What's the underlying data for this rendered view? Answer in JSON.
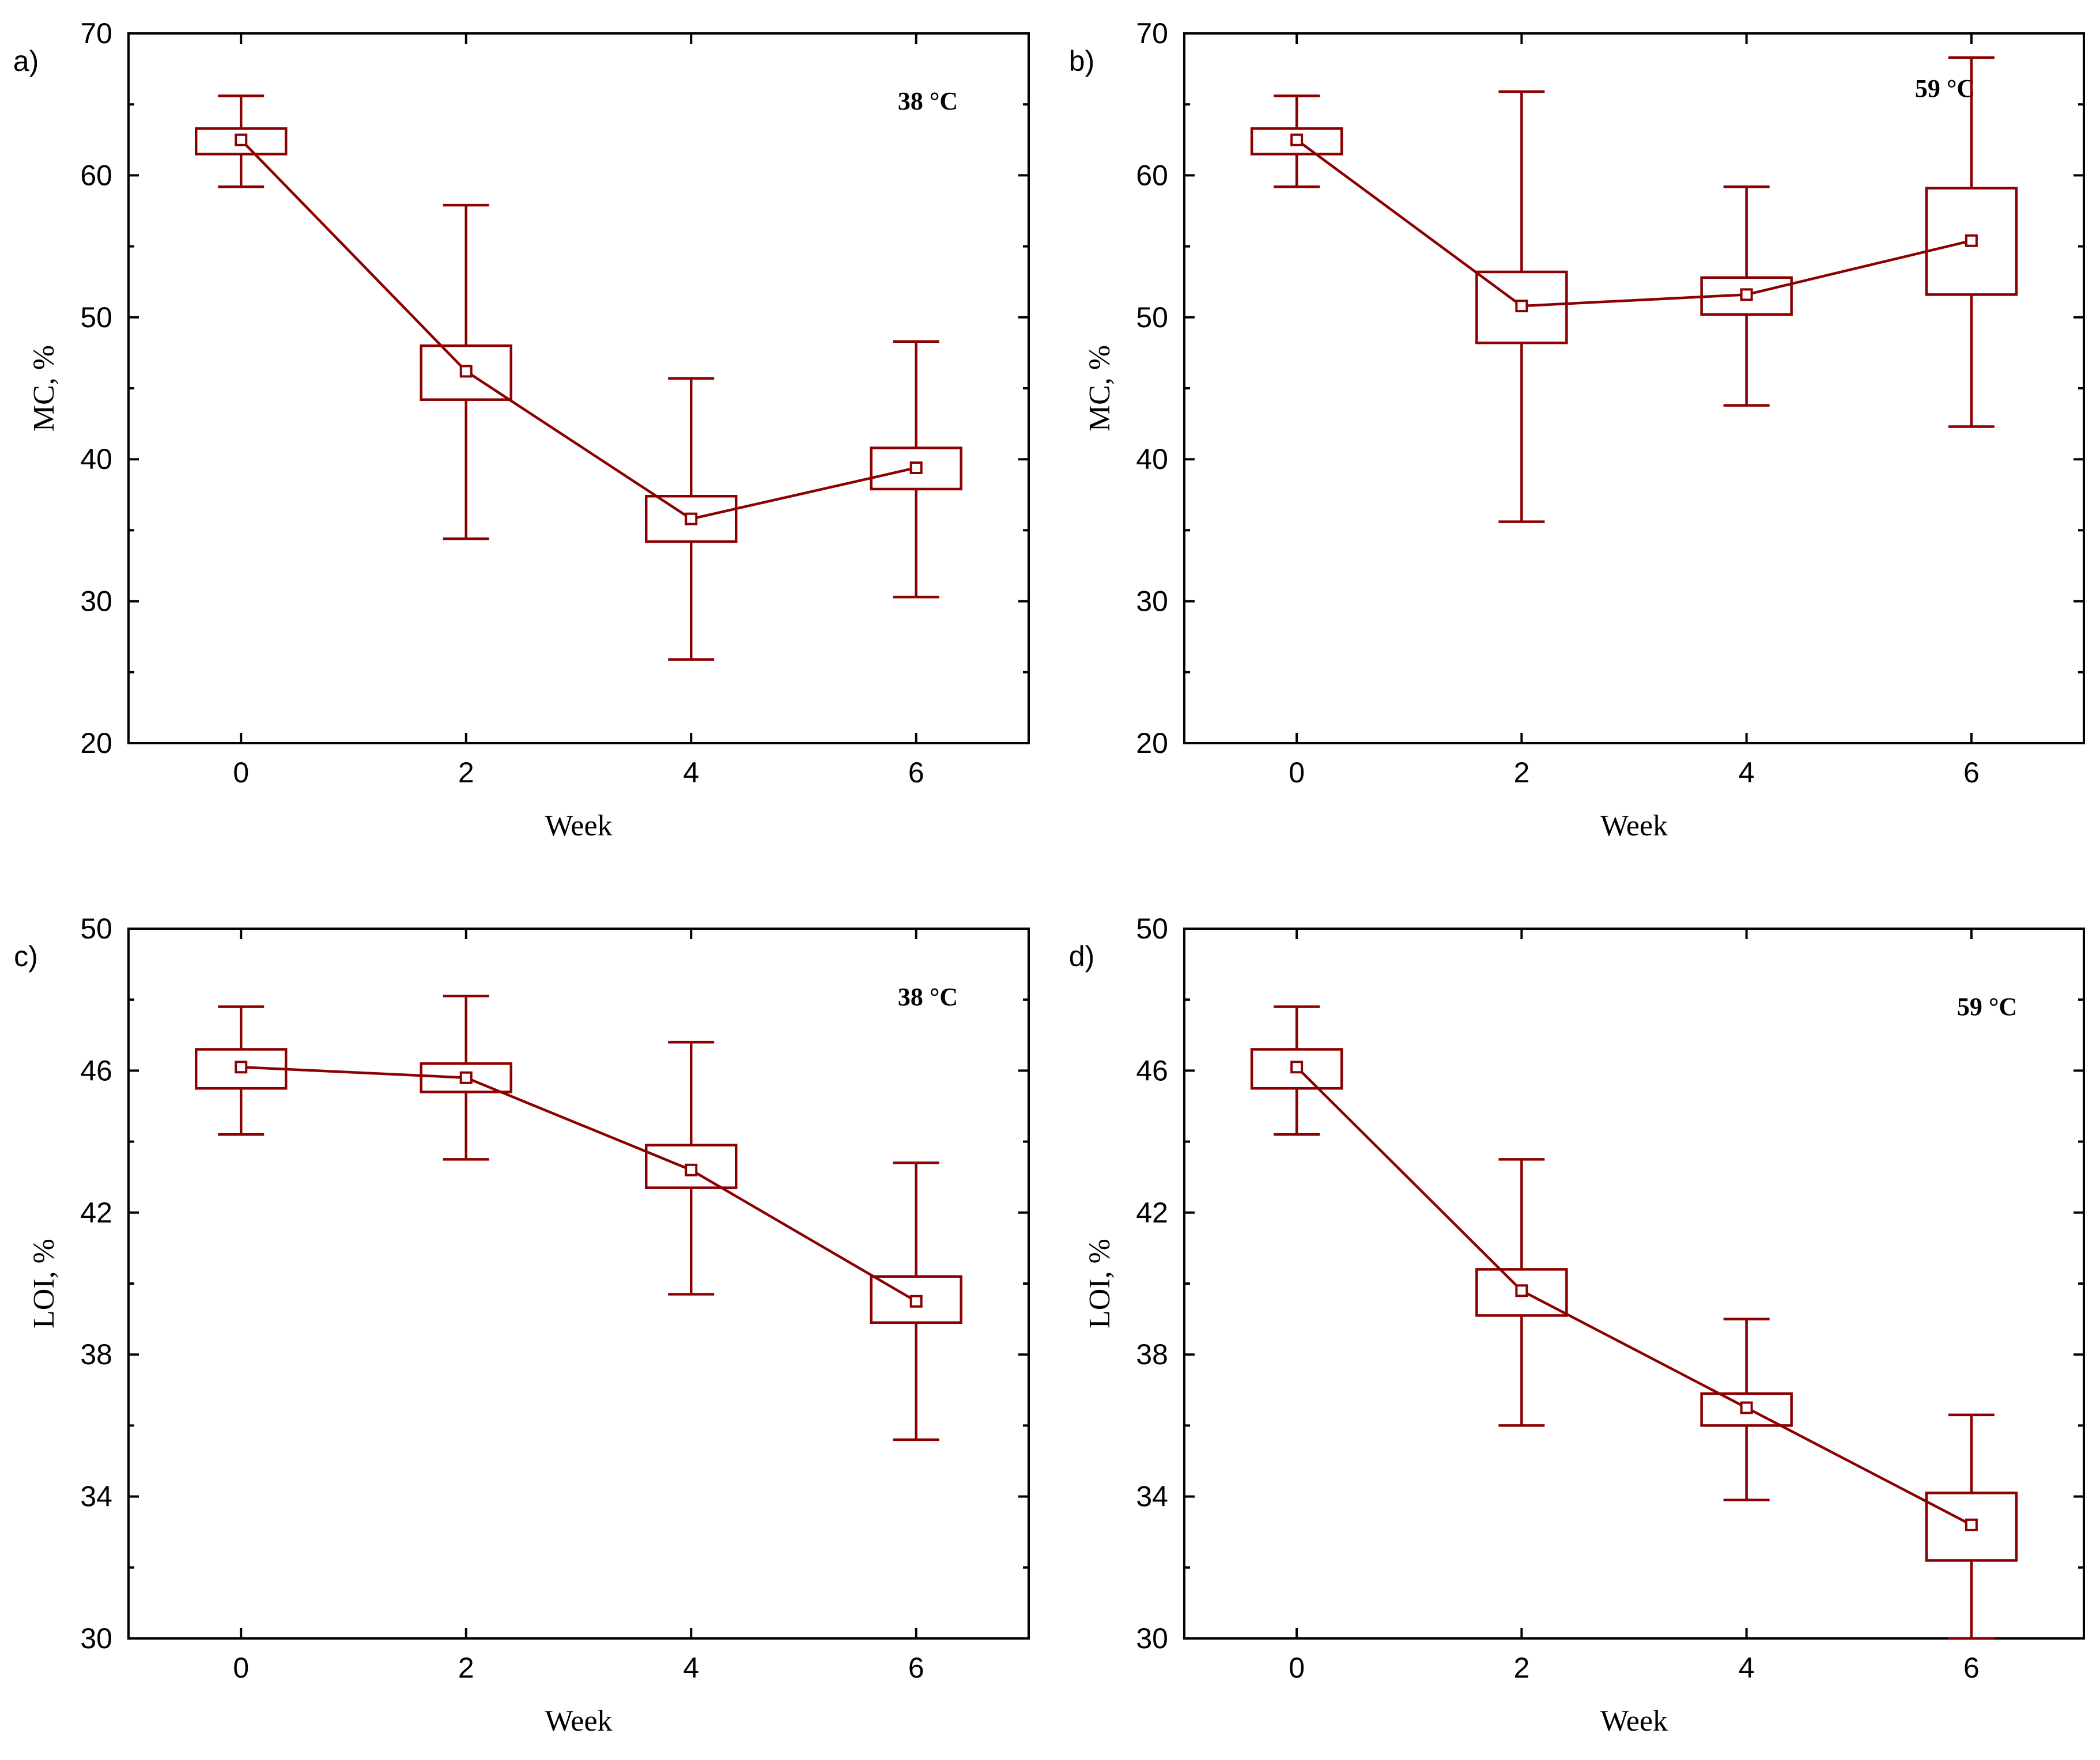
{
  "colors": {
    "series": "#8b0000",
    "axis": "#000000",
    "background": "#ffffff"
  },
  "chart_data": [
    {
      "panel": "a)",
      "type": "box",
      "annotation": "38 °C",
      "xlabel": "Week",
      "ylabel": "MC, %",
      "ylim": [
        20,
        70
      ],
      "yticks": [
        20,
        30,
        40,
        50,
        60,
        70
      ],
      "categories": [
        "0",
        "2",
        "4",
        "6"
      ],
      "series": [
        {
          "name": "MC 38 °C",
          "mean": [
            62.5,
            46.2,
            35.8,
            39.4
          ],
          "box_low": [
            61.5,
            44.2,
            34.2,
            37.9
          ],
          "box_high": [
            63.3,
            48.0,
            37.4,
            40.8
          ],
          "whisker_low": [
            59.2,
            34.4,
            25.9,
            30.3
          ],
          "whisker_high": [
            65.6,
            57.9,
            45.7,
            48.3
          ]
        }
      ]
    },
    {
      "panel": "b)",
      "type": "box",
      "annotation": "59 °C",
      "xlabel": "Week",
      "ylabel": "MC, %",
      "ylim": [
        20,
        70
      ],
      "yticks": [
        20,
        30,
        40,
        50,
        60,
        70
      ],
      "categories": [
        "0",
        "2",
        "4",
        "6"
      ],
      "series": [
        {
          "name": "MC 59 °C",
          "mean": [
            62.5,
            50.8,
            51.6,
            55.4
          ],
          "box_low": [
            61.5,
            48.2,
            50.2,
            51.6
          ],
          "box_high": [
            63.3,
            53.2,
            52.8,
            59.1
          ],
          "whisker_low": [
            59.2,
            35.6,
            43.8,
            42.3
          ],
          "whisker_high": [
            65.6,
            65.9,
            59.2,
            68.3
          ]
        }
      ]
    },
    {
      "panel": "c)",
      "type": "box",
      "annotation": "38 °C",
      "xlabel": "Week",
      "ylabel": "LOI, %",
      "ylim": [
        30,
        50
      ],
      "yticks": [
        30,
        34,
        38,
        42,
        46,
        50
      ],
      "categories": [
        "0",
        "2",
        "4",
        "6"
      ],
      "series": [
        {
          "name": "LOI 38 °C",
          "mean": [
            46.1,
            45.8,
            43.2,
            39.5
          ],
          "box_low": [
            45.5,
            45.4,
            42.7,
            38.9
          ],
          "box_high": [
            46.6,
            46.2,
            43.9,
            40.2
          ],
          "whisker_low": [
            44.2,
            43.5,
            39.7,
            35.6
          ],
          "whisker_high": [
            47.8,
            48.1,
            46.8,
            43.4
          ]
        }
      ]
    },
    {
      "panel": "d)",
      "type": "box",
      "annotation": "59 °C",
      "xlabel": "Week",
      "ylabel": "LOI, %",
      "ylim": [
        30,
        50
      ],
      "yticks": [
        30,
        34,
        38,
        42,
        46,
        50
      ],
      "categories": [
        "0",
        "2",
        "4",
        "6"
      ],
      "series": [
        {
          "name": "LOI 59 °C",
          "mean": [
            46.1,
            39.8,
            36.5,
            33.2
          ],
          "box_low": [
            45.5,
            39.1,
            36.0,
            32.2
          ],
          "box_high": [
            46.6,
            40.4,
            36.9,
            34.1
          ],
          "whisker_low": [
            44.2,
            36.0,
            33.9,
            30.0
          ],
          "whisker_high": [
            47.8,
            43.5,
            39.0,
            36.3
          ]
        }
      ]
    }
  ]
}
